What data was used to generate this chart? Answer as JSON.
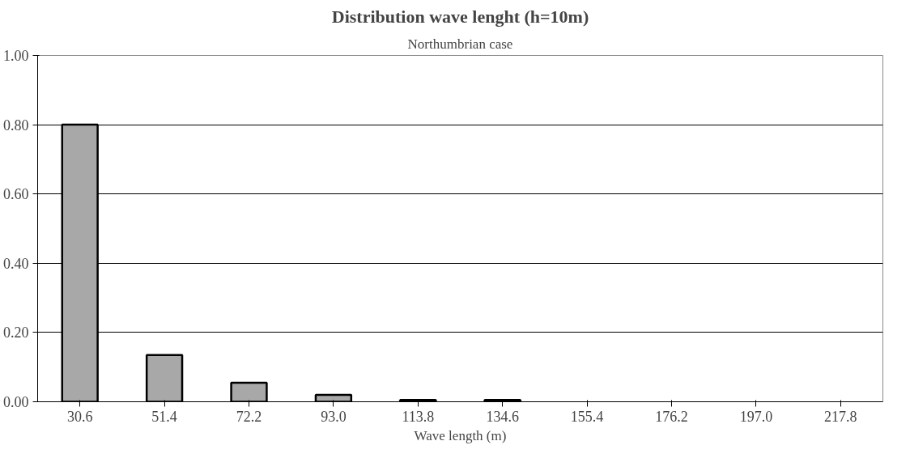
{
  "chart_data": {
    "type": "bar",
    "title": "Distribution wave lenght (h=10m)",
    "subtitle": "Northumbrian case",
    "xlabel": "Wave length (m)",
    "categories": [
      "30.6",
      "51.4",
      "72.2",
      "93.0",
      "113.8",
      "134.6",
      "155.4",
      "176.2",
      "197.0",
      "217.8"
    ],
    "values": [
      0.8,
      0.135,
      0.055,
      0.02,
      0.005,
      0.005,
      null,
      null,
      null,
      null
    ],
    "color": "#a8a8a8",
    "ylim": [
      0,
      1
    ],
    "yticks": [
      {
        "value": 0,
        "label": "0.00"
      },
      {
        "value": 0.2,
        "label": "0.20"
      },
      {
        "value": 0.4,
        "label": "0.40"
      },
      {
        "value": 0.6,
        "label": "0.60"
      },
      {
        "value": 0.8,
        "label": "0.80"
      },
      {
        "value": 1,
        "label": "1.00"
      }
    ],
    "grid": "y"
  }
}
